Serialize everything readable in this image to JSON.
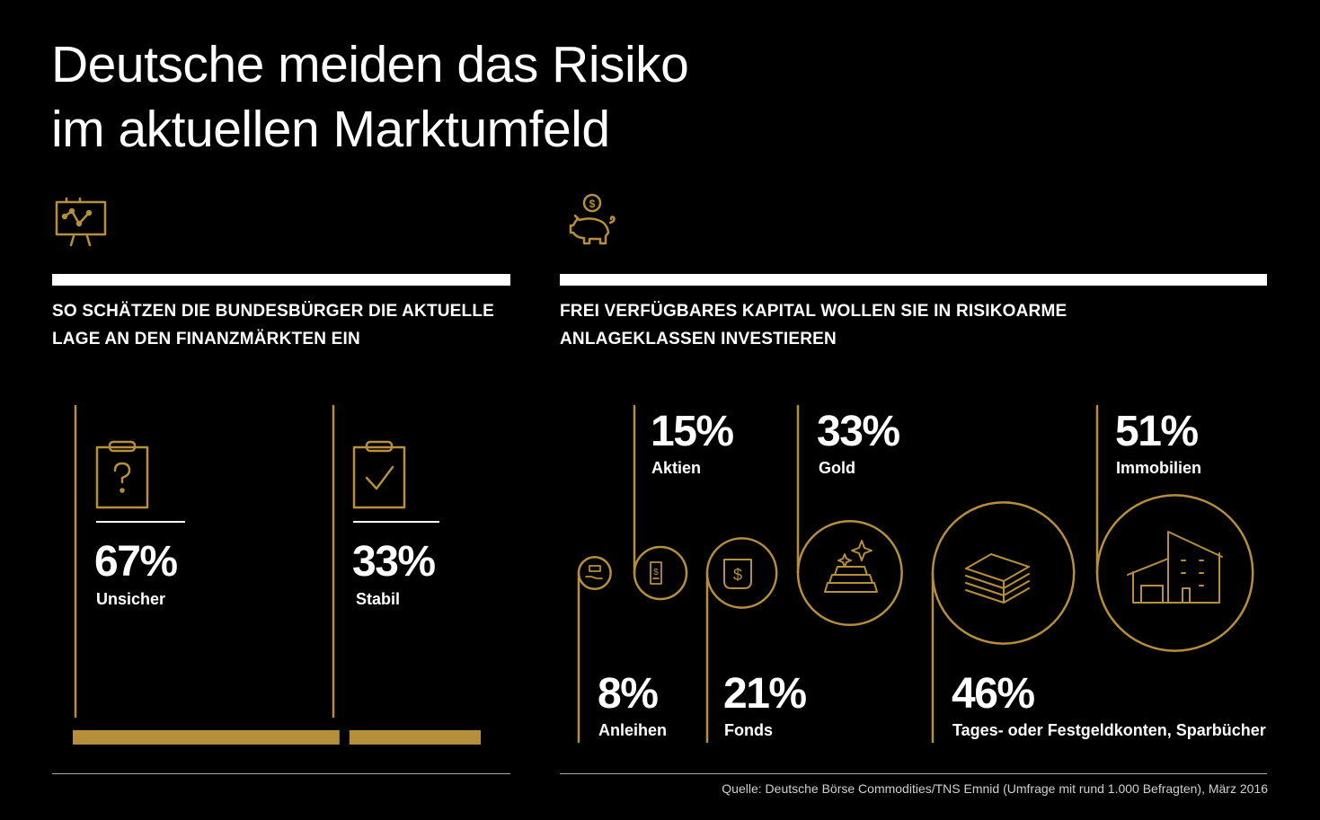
{
  "title": {
    "line1": "Deutsche meiden das Risiko",
    "line2": "im aktuellen Marktumfeld"
  },
  "colors": {
    "gold": "#b58f3c",
    "background": "#000000",
    "text": "#ffffff"
  },
  "left_section": {
    "icon": "chart-presentation-icon",
    "heading_line1": "SO SCHÄTZEN DIE BUNDESBÜRGER DIE AKTUELLE",
    "heading_line2": "LAGE AN DEN FINANZMÄRKTEN EIN"
  },
  "right_section": {
    "icon": "piggy-bank-icon",
    "heading_line1": "FREI VERFÜGBARES KAPITAL WOLLEN SIE IN RISIKOARME",
    "heading_line2": "ANLAGEKLASSEN INVESTIEREN"
  },
  "chart_data": [
    {
      "type": "bar",
      "title": "So schätzen die Bundesbürger die aktuelle Lage an den Finanzmärkten ein",
      "categories": [
        "Unsicher",
        "Stabil"
      ],
      "values": [
        67,
        33
      ],
      "value_labels": [
        "67%",
        "33%"
      ],
      "icons": [
        "clipboard-question-icon",
        "clipboard-check-icon"
      ],
      "unit": "%"
    },
    {
      "type": "bubble",
      "title": "Frei verfügbares Kapital wollen sie in risikoarme Anlageklassen investieren",
      "categories": [
        "Anleihen",
        "Aktien",
        "Fonds",
        "Gold",
        "Tages- oder Festgeldkonten, Sparbücher",
        "Immobilien"
      ],
      "values": [
        8,
        15,
        21,
        33,
        46,
        51
      ],
      "value_labels": [
        "8%",
        "15%",
        "21%",
        "33%",
        "46%",
        "51%"
      ],
      "icons": [
        "bond-hand-icon",
        "receipt-dollar-icon",
        "shield-dollar-icon",
        "gold-bars-icon",
        "money-stack-icon",
        "buildings-icon"
      ],
      "unit": "%"
    }
  ],
  "source": "Quelle: Deutsche Börse Commodities/TNS Emnid (Umfrage mit rund 1.000 Befragten), März 2016"
}
